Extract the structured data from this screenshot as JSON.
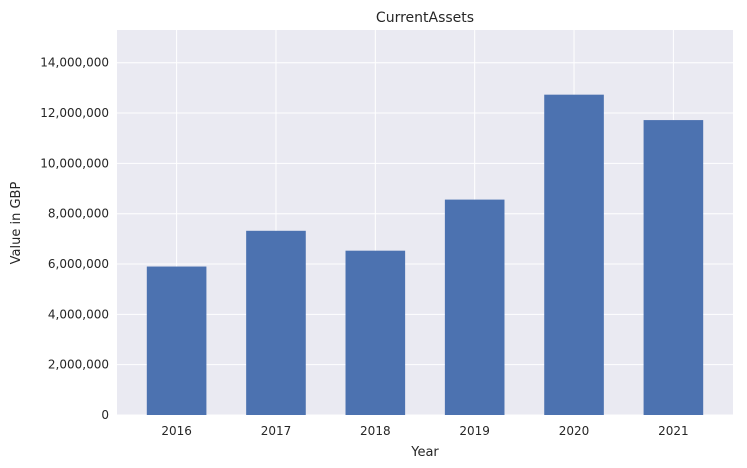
{
  "chart_data": {
    "type": "bar",
    "title": "CurrentAssets",
    "xlabel": "Year",
    "ylabel": "Value in GBP",
    "categories": [
      "2016",
      "2017",
      "2018",
      "2019",
      "2020",
      "2021"
    ],
    "values": [
      5900000,
      7320000,
      6530000,
      8560000,
      12730000,
      11720000
    ],
    "ylim": [
      0,
      15300000
    ],
    "yticks": [
      0,
      2000000,
      4000000,
      6000000,
      8000000,
      10000000,
      12000000,
      14000000
    ],
    "ytick_labels": [
      "0",
      "2,000,000",
      "4,000,000",
      "6,000,000",
      "8,000,000",
      "10,000,000",
      "12,000,000",
      "14,000,000"
    ],
    "grid": true,
    "bar_color": "#4c72b0",
    "background_color": "#eaeaf2",
    "grid_color": "#ffffff"
  }
}
